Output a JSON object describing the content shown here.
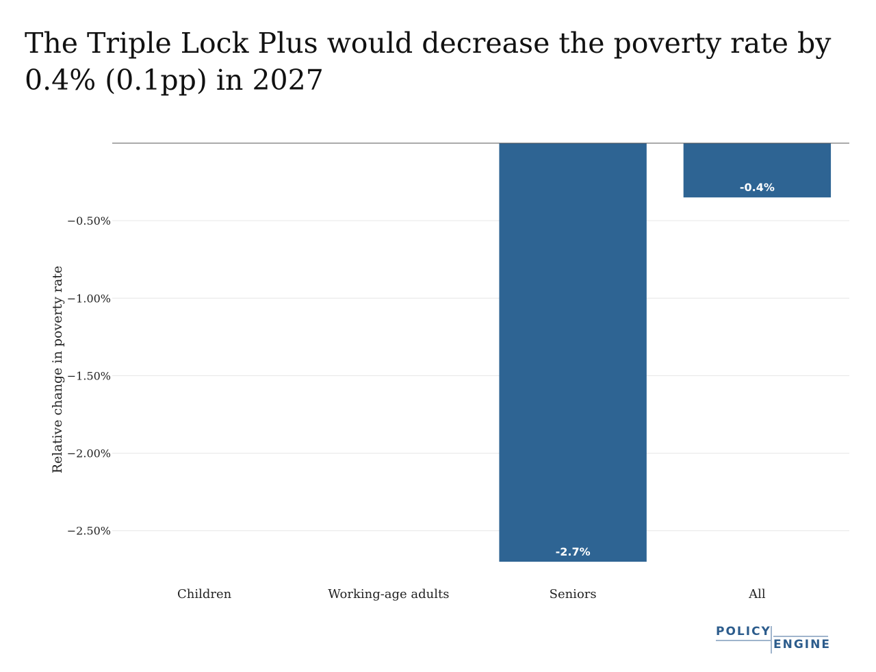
{
  "title": "The Triple Lock Plus would decrease the poverty rate by 0.4% (0.1pp) in 2027",
  "logo": {
    "line1": "POLICY",
    "line2": "ENGINE"
  },
  "colors": {
    "bar": "#2e6493",
    "grid": "#e6e6e6",
    "zero_line": "#555555"
  },
  "chart_data": {
    "type": "bar",
    "categories": [
      "Children",
      "Working-age adults",
      "Seniors",
      "All"
    ],
    "values": [
      0,
      0,
      -2.7,
      -0.35
    ],
    "data_labels": [
      "",
      "",
      "-2.7%",
      "-0.4%"
    ],
    "ylabel": "Relative change in poverty rate",
    "ylim": [
      -2.7,
      0
    ],
    "yticks": [
      -0.5,
      -1.0,
      -1.5,
      -2.0,
      -2.5
    ],
    "ytick_labels": [
      "−0.50%",
      "−1.00%",
      "−1.50%",
      "−2.00%",
      "−2.50%"
    ],
    "grid": true
  }
}
